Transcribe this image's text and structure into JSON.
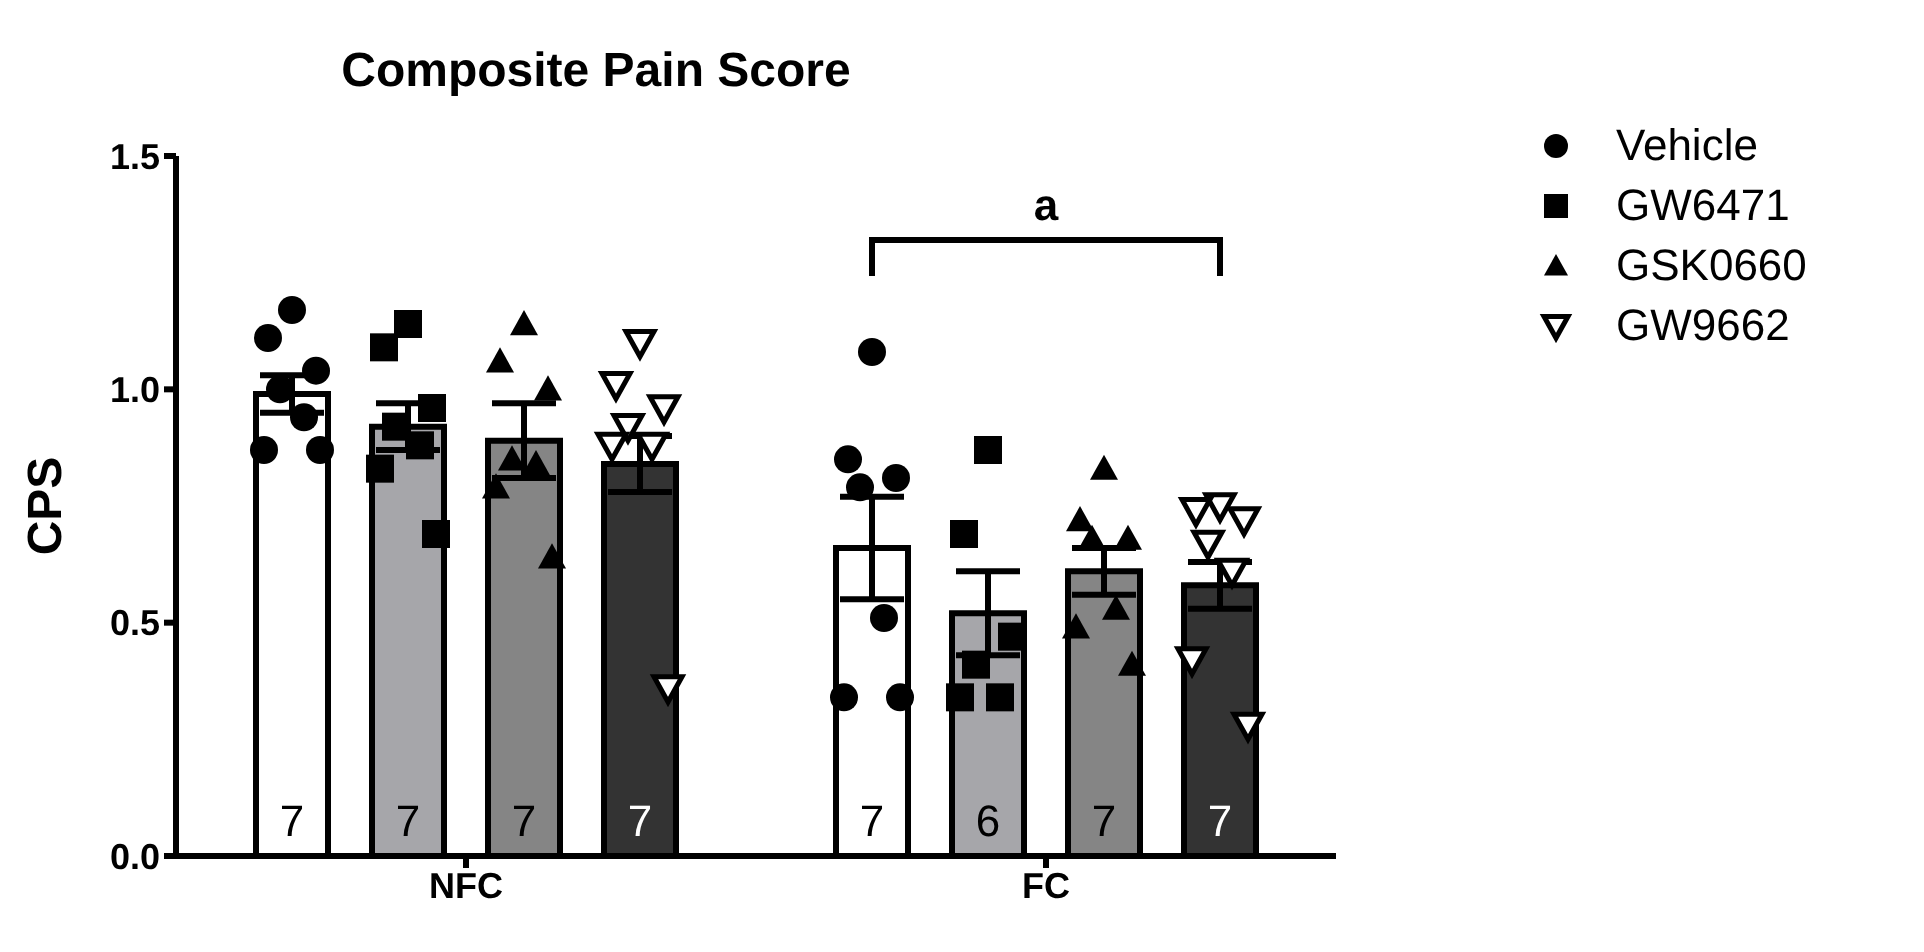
{
  "chart_data": {
    "type": "bar",
    "title": "Composite Pain Score",
    "ylabel": "CPS",
    "categories": [
      "NFC",
      "FC"
    ],
    "ylim": [
      0,
      1.5
    ],
    "yticks": [
      {
        "value": 0,
        "label": "0.0"
      },
      {
        "value": 0.5,
        "label": "0.5"
      },
      {
        "value": 1,
        "label": "1.0"
      },
      {
        "value": 1.5,
        "label": "1.5"
      }
    ],
    "legend": "right",
    "series": [
      {
        "color": "#ffffff",
        "values": [
          0.99,
          0.66
        ],
        "errors": [
          0.04,
          0.11
        ]
      },
      {
        "color": "#a6a6aa",
        "values": [
          0.92,
          0.52
        ],
        "errors": [
          0.05,
          0.09
        ]
      },
      {
        "color": "#858585",
        "values": [
          0.89,
          0.61
        ],
        "errors": [
          0.08,
          0.05
        ]
      },
      {
        "color": "#333333",
        "values": [
          0.84,
          0.58
        ],
        "errors": [
          0.06,
          0.05
        ]
      },
      {
        "type": "scatter",
        "name": "Vehicle",
        "color": "#000000",
        "marker": "circle",
        "x": [
          "NFC",
          "NFC",
          "NFC",
          "NFC",
          "NFC",
          "NFC",
          "NFC",
          "FC",
          "FC",
          "FC",
          "FC",
          "FC",
          "FC",
          "FC"
        ],
        "values": [
          1.17,
          1.11,
          1.04,
          1.0,
          0.94,
          0.87,
          0.87,
          1.08,
          0.85,
          0.81,
          0.79,
          0.51,
          0.34,
          0.34
        ]
      },
      {
        "type": "scatter",
        "name": "GW6471",
        "color": "#000000",
        "marker": "square",
        "x": [
          "NFC",
          "NFC",
          "NFC",
          "NFC",
          "NFC",
          "NFC",
          "NFC",
          "FC",
          "FC",
          "FC",
          "FC",
          "FC",
          "FC"
        ],
        "values": [
          1.14,
          1.09,
          0.96,
          0.92,
          0.88,
          0.83,
          0.69,
          0.87,
          0.69,
          0.47,
          0.41,
          0.34,
          0.34
        ]
      },
      {
        "type": "scatter",
        "name": "GSK0660",
        "color": "#000000",
        "marker": "triangle",
        "x": [
          "NFC",
          "NFC",
          "NFC",
          "NFC",
          "NFC",
          "NFC",
          "NFC",
          "FC",
          "FC",
          "FC",
          "FC",
          "FC",
          "FC",
          "FC"
        ],
        "values": [
          1.14,
          1.06,
          1.0,
          0.85,
          0.84,
          0.79,
          0.64,
          0.83,
          0.72,
          0.68,
          0.68,
          0.53,
          0.49,
          0.41
        ]
      },
      {
        "type": "scatter",
        "name": "GW9662",
        "color": "#000000",
        "marker": "triangle-down",
        "x": [
          "NFC",
          "NFC",
          "NFC",
          "NFC",
          "NFC",
          "NFC",
          "NFC",
          "FC",
          "FC",
          "FC",
          "FC",
          "FC",
          "FC",
          "FC"
        ],
        "values": [
          1.1,
          1.01,
          0.96,
          0.92,
          0.88,
          0.88,
          0.36,
          0.75,
          0.74,
          0.72,
          0.67,
          0.61,
          0.42,
          0.28
        ]
      }
    ],
    "annotations": [
      "a",
      "7",
      "7",
      "7",
      "7",
      "7",
      "6",
      "7",
      "7"
    ]
  }
}
